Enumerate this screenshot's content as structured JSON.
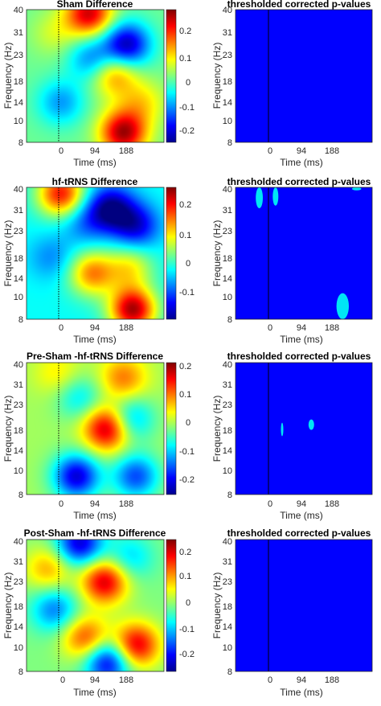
{
  "figure": {
    "x_ticks": [
      "0",
      "94",
      "188"
    ],
    "y_ticks": [
      "8",
      "10",
      "14",
      "18",
      "23",
      "31",
      "40"
    ],
    "x_label": "Time (ms)",
    "y_label": "Frequency (Hz)"
  },
  "rows": [
    {
      "heatmap_title": "Sham Difference",
      "colorbar_ticks": [
        "0.2",
        "0.1",
        "0",
        "-0.1",
        "-0.2"
      ],
      "pvalue_title": "thresholded corrected p-values"
    },
    {
      "heatmap_title": "hf-tRNS Difference",
      "colorbar_ticks": [
        "0.2",
        "0.1",
        "0",
        "-0.1"
      ],
      "pvalue_title": "thresholded corrected p-values"
    },
    {
      "heatmap_title": "Pre-Sham -hf-tRNS Difference",
      "colorbar_ticks": [
        "0.2",
        "0.1",
        "0",
        "-0.1",
        "-0.2"
      ],
      "pvalue_title": "thresholded corrected p-values"
    },
    {
      "heatmap_title": "Post-Sham -hf-tRNS Difference",
      "colorbar_ticks": [
        "0.2",
        "0.1",
        "0",
        "-0.1",
        "-0.2"
      ],
      "pvalue_title": "thresholded corrected p-values"
    }
  ],
  "colors": {
    "jet_dark_blue": "#00008f",
    "jet_blue": "#0000ff",
    "jet_cyan": "#00ffff",
    "jet_yellow": "#ffff00",
    "jet_red": "#ff0000",
    "jet_dark_red": "#800000",
    "significant": "#00e5f5",
    "nonsignificant": "#0000ff"
  },
  "chart_data": [
    {
      "type": "heatmap",
      "title": "Sham Difference",
      "xlabel": "Time (ms)",
      "ylabel": "Frequency (Hz)",
      "x_ticks": [
        0,
        94,
        188
      ],
      "y_ticks": [
        8,
        10,
        14,
        18,
        23,
        31,
        40
      ],
      "y_scale": "log",
      "colormap": "jet",
      "clim": [
        -0.24,
        0.26
      ],
      "colorbar_ticks": [
        0.2,
        0.1,
        0,
        -0.1,
        -0.2
      ],
      "blobs": [
        {
          "time_ms": 50,
          "freq_hz": 38,
          "value": 0.22
        },
        {
          "time_ms": 170,
          "freq_hz": 26,
          "value": -0.22
        },
        {
          "time_ms": 60,
          "freq_hz": 22,
          "value": -0.12
        },
        {
          "time_ms": 130,
          "freq_hz": 18.5,
          "value": 0.14
        },
        {
          "time_ms": 160,
          "freq_hz": 9,
          "value": 0.24
        },
        {
          "time_ms": -40,
          "freq_hz": 13,
          "value": -0.1
        },
        {
          "time_ms": 220,
          "freq_hz": 13,
          "value": 0.08
        },
        {
          "time_ms": -60,
          "freq_hz": 30,
          "value": 0.05
        }
      ]
    },
    {
      "type": "heatmap",
      "title": "thresholded corrected p-values",
      "xlabel": "Time (ms)",
      "ylabel": "Frequency (Hz)",
      "x_ticks": [
        0,
        94,
        188
      ],
      "y_ticks": [
        8,
        10,
        14,
        18,
        23,
        31,
        40
      ],
      "y_scale": "log",
      "significant_regions": []
    },
    {
      "type": "heatmap",
      "title": "hf-tRNS Difference",
      "xlabel": "Time (ms)",
      "ylabel": "Frequency (Hz)",
      "x_ticks": [
        0,
        94,
        188
      ],
      "y_ticks": [
        8,
        10,
        14,
        18,
        23,
        31,
        40
      ],
      "y_scale": "log",
      "colormap": "jet",
      "clim": [
        -0.16,
        0.26
      ],
      "colorbar_ticks": [
        0.2,
        0.1,
        0,
        -0.1
      ],
      "blobs": [
        {
          "time_ms": -40,
          "freq_hz": 37,
          "value": 0.2
        },
        {
          "time_ms": 120,
          "freq_hz": 31,
          "value": -0.15
        },
        {
          "time_ms": 200,
          "freq_hz": 25,
          "value": -0.12
        },
        {
          "time_ms": 40,
          "freq_hz": 26,
          "value": -0.06
        },
        {
          "time_ms": 60,
          "freq_hz": 14,
          "value": 0.15
        },
        {
          "time_ms": 190,
          "freq_hz": 9,
          "value": 0.24
        },
        {
          "time_ms": 180,
          "freq_hz": 15,
          "value": 0.1
        },
        {
          "time_ms": -70,
          "freq_hz": 17,
          "value": -0.05
        }
      ]
    },
    {
      "type": "heatmap",
      "title": "thresholded corrected p-values",
      "xlabel": "Time (ms)",
      "ylabel": "Frequency (Hz)",
      "x_ticks": [
        0,
        94,
        188
      ],
      "y_ticks": [
        8,
        10,
        14,
        18,
        23,
        31,
        40
      ],
      "y_scale": "log",
      "significant_regions": [
        {
          "time_ms": [
            -85,
            -62
          ],
          "freq_hz": [
            31,
            40
          ]
        },
        {
          "time_ms": [
            -30,
            -12
          ],
          "freq_hz": [
            32,
            40
          ]
        },
        {
          "time_ms": [
            175,
            215
          ],
          "freq_hz": [
            8,
            11
          ]
        },
        {
          "time_ms": [
            225,
            255
          ],
          "freq_hz": [
            38.5,
            40
          ]
        }
      ]
    },
    {
      "type": "heatmap",
      "title": "Pre-Sham -hf-tRNS Difference",
      "xlabel": "Time (ms)",
      "ylabel": "Frequency (Hz)",
      "x_ticks": [
        0,
        94,
        188
      ],
      "y_ticks": [
        8,
        10,
        14,
        18,
        23,
        31,
        40
      ],
      "y_scale": "log",
      "colormap": "jet",
      "clim": [
        -0.24,
        0.21
      ],
      "colorbar_ticks": [
        0.2,
        0.1,
        0,
        -0.1,
        -0.2
      ],
      "blobs": [
        {
          "time_ms": 110,
          "freq_hz": 18,
          "value": 0.2
        },
        {
          "time_ms": 160,
          "freq_hz": 33,
          "value": 0.1
        },
        {
          "time_ms": 20,
          "freq_hz": 26,
          "value": -0.08
        },
        {
          "time_ms": 180,
          "freq_hz": 20,
          "value": -0.12
        },
        {
          "time_ms": 10,
          "freq_hz": 10,
          "value": -0.2
        },
        {
          "time_ms": 200,
          "freq_hz": 10,
          "value": -0.15
        },
        {
          "time_ms": -50,
          "freq_hz": 35,
          "value": 0.05
        }
      ]
    },
    {
      "type": "heatmap",
      "title": "thresholded corrected p-values",
      "xlabel": "Time (ms)",
      "ylabel": "Frequency (Hz)",
      "x_ticks": [
        0,
        94,
        188
      ],
      "y_ticks": [
        8,
        10,
        14,
        18,
        23,
        31,
        40
      ],
      "y_scale": "log",
      "significant_regions": [
        {
          "time_ms": [
            -4,
            4
          ],
          "freq_hz": [
            16.3,
            19.2
          ]
        },
        {
          "time_ms": [
            85,
            103
          ],
          "freq_hz": [
            17.6,
            20
          ]
        }
      ]
    },
    {
      "type": "heatmap",
      "title": "Post-Sham -hf-tRNS Difference",
      "xlabel": "Time (ms)",
      "ylabel": "Frequency (Hz)",
      "x_ticks": [
        0,
        94,
        188
      ],
      "y_ticks": [
        8,
        10,
        14,
        18,
        23,
        31,
        40
      ],
      "y_scale": "log",
      "colormap": "jet",
      "clim": [
        -0.24,
        0.24
      ],
      "colorbar_ticks": [
        0.2,
        0.1,
        0,
        -0.1,
        -0.2
      ],
      "blobs": [
        {
          "time_ms": 100,
          "freq_hz": 24,
          "value": 0.2
        },
        {
          "time_ms": 20,
          "freq_hz": 38,
          "value": -0.2
        },
        {
          "time_ms": 200,
          "freq_hz": 11,
          "value": 0.2
        },
        {
          "time_ms": 40,
          "freq_hz": 12,
          "value": 0.15
        },
        {
          "time_ms": 110,
          "freq_hz": 9,
          "value": -0.2
        },
        {
          "time_ms": -60,
          "freq_hz": 17,
          "value": -0.12
        },
        {
          "time_ms": -80,
          "freq_hz": 28,
          "value": 0.1
        },
        {
          "time_ms": 180,
          "freq_hz": 32,
          "value": -0.08
        }
      ]
    },
    {
      "type": "heatmap",
      "title": "thresholded corrected p-values",
      "xlabel": "Time (ms)",
      "ylabel": "Frequency (Hz)",
      "x_ticks": [
        0,
        94,
        188
      ],
      "y_ticks": [
        8,
        10,
        14,
        18,
        23,
        31,
        40
      ],
      "y_scale": "log",
      "significant_regions": []
    }
  ]
}
